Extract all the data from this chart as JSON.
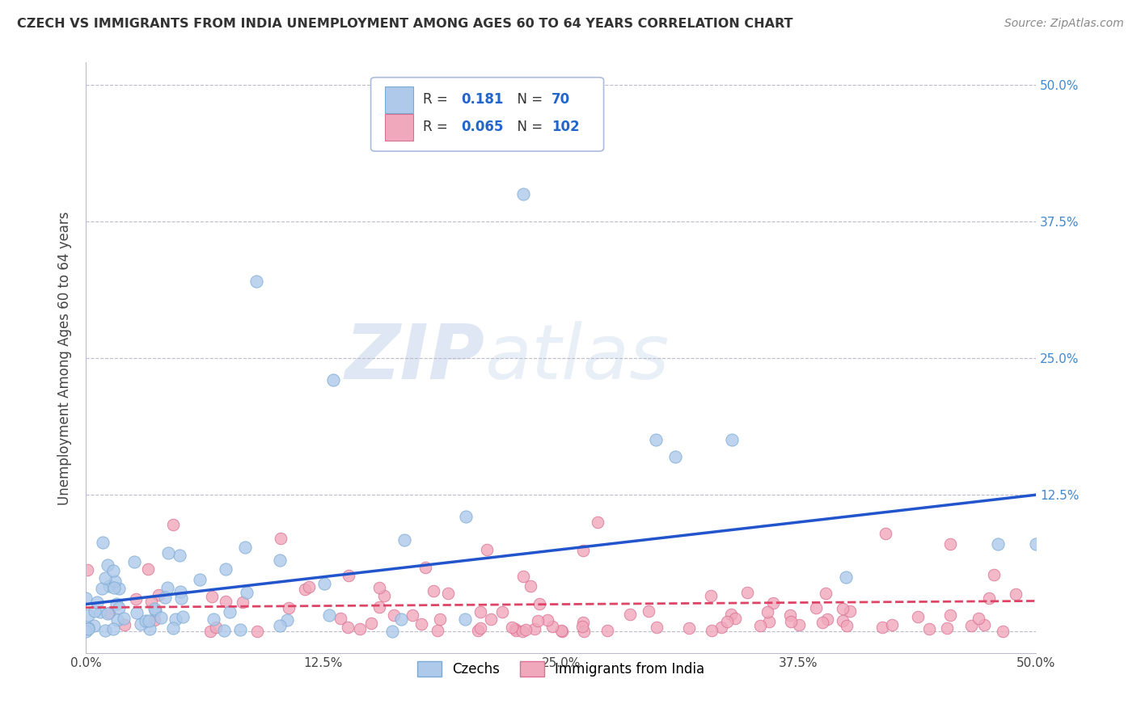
{
  "title": "CZECH VS IMMIGRANTS FROM INDIA UNEMPLOYMENT AMONG AGES 60 TO 64 YEARS CORRELATION CHART",
  "source": "Source: ZipAtlas.com",
  "ylabel": "Unemployment Among Ages 60 to 64 years",
  "xlim": [
    0.0,
    0.5
  ],
  "ylim": [
    -0.02,
    0.52
  ],
  "xticks": [
    0.0,
    0.125,
    0.25,
    0.375,
    0.5
  ],
  "yticks": [
    0.0,
    0.125,
    0.25,
    0.375,
    0.5
  ],
  "xtick_labels": [
    "0.0%",
    "12.5%",
    "25.0%",
    "37.5%",
    "50.0%"
  ],
  "ytick_labels": [
    "",
    "12.5%",
    "25.0%",
    "37.5%",
    "50.0%"
  ],
  "series": [
    {
      "name": "Czechs",
      "R": 0.181,
      "N": 70,
      "color": "#aec9ea",
      "edge_color": "#7aaad4",
      "line_color": "#2255cc",
      "trend_x0": 0.0,
      "trend_y0": 0.025,
      "trend_x1": 0.5,
      "trend_y1": 0.125
    },
    {
      "name": "Immigrants from India",
      "R": 0.065,
      "N": 102,
      "color": "#f0a8bc",
      "edge_color": "#d97090",
      "line_color": "#dd4466",
      "trend_x0": 0.0,
      "trend_y0": 0.022,
      "trend_x1": 0.5,
      "trend_y1": 0.028
    }
  ],
  "watermark_part1": "ZIP",
  "watermark_part2": "atlas",
  "watermark_color1": "#c8d8ec",
  "watermark_color2": "#c8d8ec",
  "bg_color": "#ffffff",
  "grid_color": "#bbbbcc",
  "ytick_color": "#4488cc",
  "xtick_color": "#444444",
  "ylabel_color": "#444444",
  "title_color": "#333333",
  "source_color": "#888888"
}
